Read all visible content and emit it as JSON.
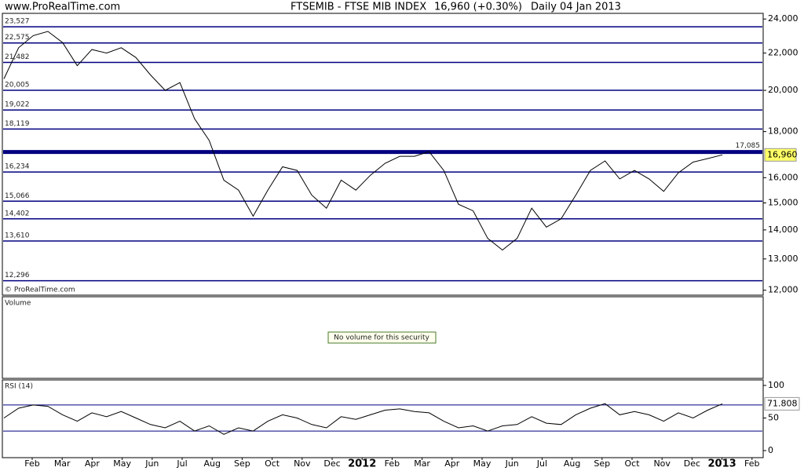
{
  "header": {
    "site": "www.ProRealTime.com",
    "instrument": "FTSEMIB - FTSE MIB INDEX",
    "quote": "16,960 (+0.30%)",
    "period": "Daily  04 Jan 2013"
  },
  "copyright": "© ProRealTime.com",
  "volume_panel": {
    "title": "Volume",
    "message": "No volume for this security"
  },
  "chart_data": [
    {
      "type": "line",
      "log_scale": true,
      "color": "#000000",
      "x_tick_labels": [
        "Feb",
        "Mar",
        "Apr",
        "May",
        "Jun",
        "Jul",
        "Aug",
        "Sep",
        "Oct",
        "Nov",
        "Dec",
        "2012",
        "Feb",
        "Mar",
        "Apr",
        "May",
        "Jun",
        "Jul",
        "Aug",
        "Sep",
        "Oct",
        "Nov",
        "Dec",
        "2013",
        "Feb"
      ],
      "values": [
        20600,
        22300,
        23000,
        23250,
        22600,
        21300,
        22200,
        22000,
        22300,
        21750,
        20800,
        20000,
        20400,
        18600,
        17600,
        15900,
        15500,
        14500,
        15500,
        16450,
        16300,
        15300,
        14800,
        15900,
        15500,
        16100,
        16600,
        16900,
        16900,
        17100,
        16300,
        14950,
        14700,
        13700,
        13300,
        13700,
        14800,
        14100,
        14400,
        15300,
        16300,
        16700,
        15950,
        16300,
        15950,
        15450,
        16200,
        16650,
        16800,
        16960
      ],
      "last_label": "16,960",
      "ylim": [
        11850,
        24350
      ],
      "yticks": [
        {
          "value": 24000,
          "label": "24,000"
        },
        {
          "value": 22000,
          "label": "22,000"
        },
        {
          "value": 20000,
          "label": "20,000"
        },
        {
          "value": 18000,
          "label": "18,000"
        },
        {
          "value": 16000,
          "label": "16,000"
        },
        {
          "value": 15000,
          "label": "15,000"
        },
        {
          "value": 14000,
          "label": "14,000"
        },
        {
          "value": 13000,
          "label": "13,000"
        },
        {
          "value": 12000,
          "label": "12,000"
        }
      ],
      "levels": [
        {
          "value": 23527,
          "label": "23,527"
        },
        {
          "value": 22575,
          "label": "22,575"
        },
        {
          "value": 21482,
          "label": "21,482"
        },
        {
          "value": 20005,
          "label": "20,005"
        },
        {
          "value": 19022,
          "label": "19,022"
        },
        {
          "value": 18119,
          "label": "18,119"
        },
        {
          "value": 17085,
          "label": "17,085",
          "bold": true
        },
        {
          "value": 16234,
          "label": "16,234"
        },
        {
          "value": 15066,
          "label": "15,066"
        },
        {
          "value": 14402,
          "label": "14,402"
        },
        {
          "value": 13610,
          "label": "13,610"
        },
        {
          "value": 12296,
          "label": "12,296"
        }
      ],
      "level_color": "#000080"
    },
    {
      "type": "line",
      "title": "RSI (14)",
      "color": "#000000",
      "values": [
        50,
        65,
        70,
        68,
        55,
        45,
        58,
        52,
        60,
        50,
        40,
        35,
        45,
        30,
        38,
        25,
        35,
        30,
        45,
        55,
        50,
        40,
        35,
        52,
        48,
        55,
        62,
        64,
        60,
        58,
        45,
        35,
        38,
        30,
        38,
        40,
        52,
        42,
        40,
        55,
        65,
        72,
        55,
        60,
        55,
        45,
        58,
        50,
        62,
        71.808
      ],
      "ylim": [
        0,
        100
      ],
      "yticks": [
        0,
        50,
        100
      ],
      "levels": [
        30,
        70
      ],
      "level_color": "#000080"
    }
  ]
}
